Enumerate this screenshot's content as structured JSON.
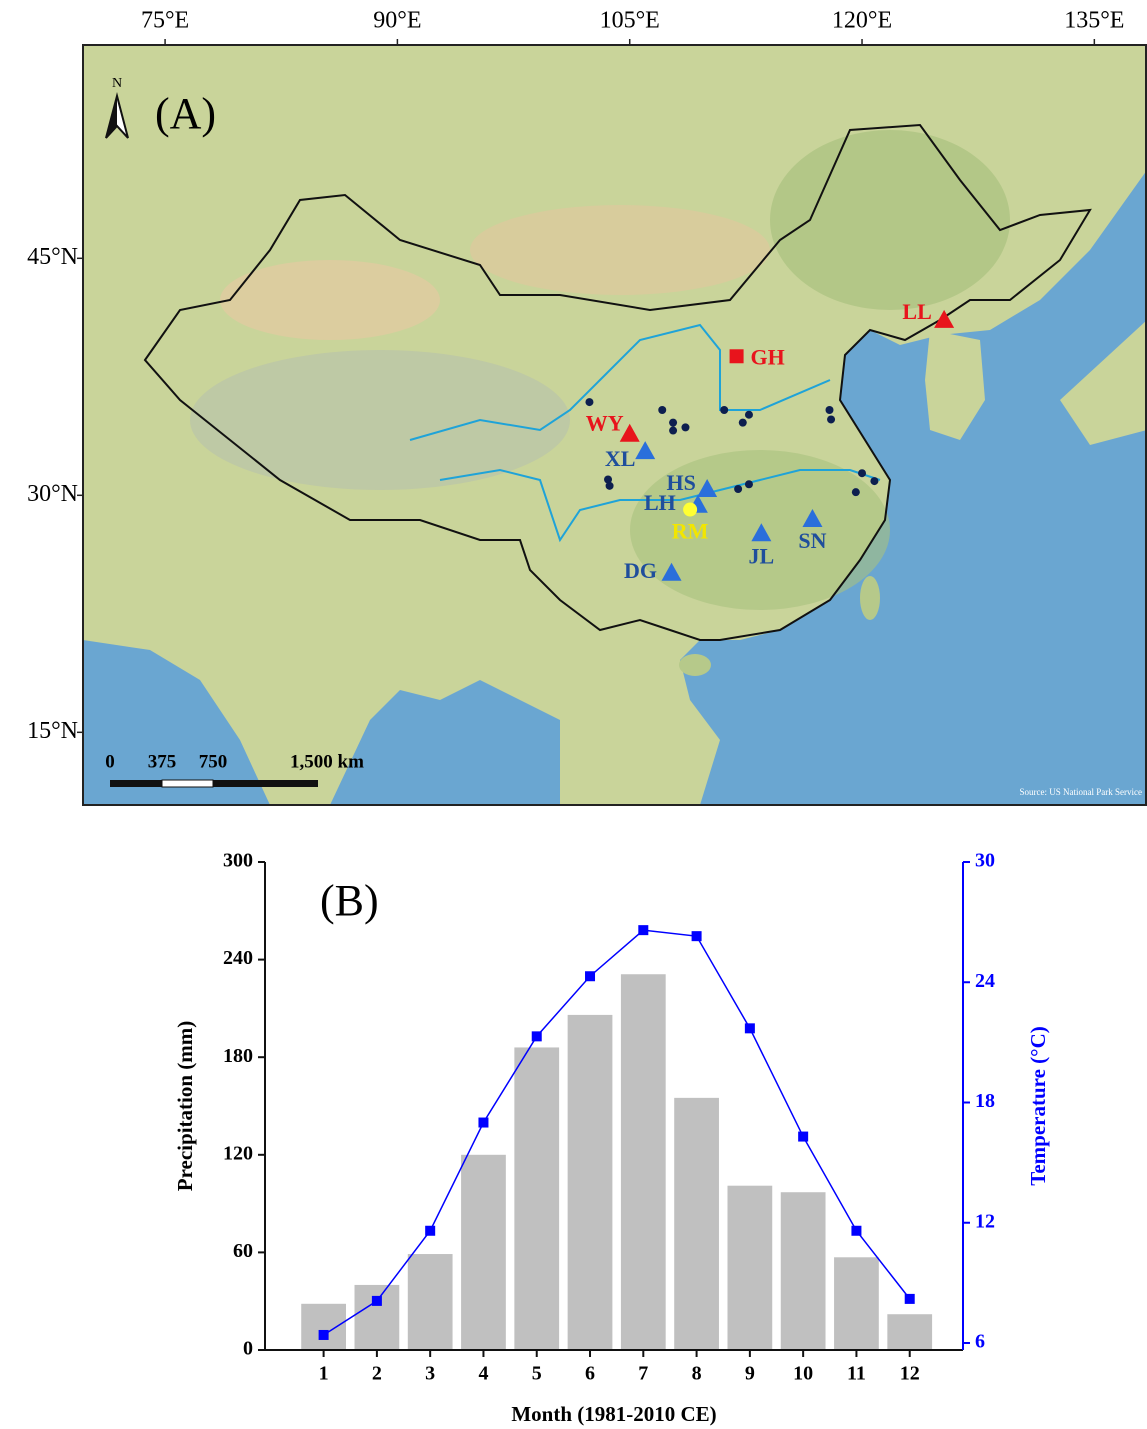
{
  "chart_data": [
    {
      "type": "map",
      "title": "(A)",
      "north_label": "N",
      "xlim": [
        69.7,
        138.4
      ],
      "ylim": [
        10.4,
        58.5
      ],
      "xticks": [
        {
          "value": 75,
          "label": "75°E"
        },
        {
          "value": 90,
          "label": "90°E"
        },
        {
          "value": 105,
          "label": "105°E"
        },
        {
          "value": 120,
          "label": "120°E"
        },
        {
          "value": 135,
          "label": "135°E"
        }
      ],
      "yticks": [
        {
          "value": 15,
          "label": "15°N"
        },
        {
          "value": 30,
          "label": "30°N"
        },
        {
          "value": 45,
          "label": "45°N"
        }
      ],
      "scale_bar_labels": [
        "0",
        "375",
        "750",
        "1,500 km"
      ],
      "source": "Source: US National Park Service",
      "series": [
        {
          "marker": "triangle",
          "color": "#e8141c",
          "label_color": "#e8141c",
          "x": [
            105.0,
            125.3
          ],
          "y": [
            33.9,
            41.1
          ],
          "labels": [
            "WY",
            "LL"
          ]
        },
        {
          "marker": "square",
          "color": "#e8141c",
          "label_color": "#e8141c",
          "x": [
            111.9
          ],
          "y": [
            38.8
          ],
          "labels": [
            "GH"
          ]
        },
        {
          "marker": "triangle",
          "color": "#2a6fdb",
          "label_color": "#1f4e9c",
          "x": [
            106.0,
            110.0,
            109.4,
            113.5,
            116.8,
            107.7
          ],
          "y": [
            32.8,
            30.4,
            29.4,
            27.6,
            28.5,
            25.1
          ],
          "labels": [
            "XL",
            "HS",
            "LH",
            "JL",
            "SN",
            "DG"
          ]
        },
        {
          "marker": "circle",
          "color": "#ffff33",
          "label_color": "#f2e600",
          "x": [
            108.9
          ],
          "y": [
            29.1
          ],
          "labels": [
            "RM"
          ]
        },
        {
          "marker": "dot",
          "color": "#0d1f4f",
          "x": [
            102.4,
            107.1,
            107.8,
            108.6,
            107.8,
            111.1,
            112.7,
            112.3,
            117.9,
            118.0,
            103.6,
            103.7,
            112.0,
            112.7,
            120.0,
            120.8,
            119.6
          ],
          "y": [
            35.9,
            35.4,
            34.6,
            34.3,
            34.1,
            35.4,
            35.1,
            34.6,
            35.4,
            34.8,
            31.0,
            30.6,
            30.4,
            30.7,
            31.4,
            30.9,
            30.2
          ]
        }
      ]
    },
    {
      "type": "bar",
      "title": "(B)",
      "categories": [
        "1",
        "2",
        "3",
        "4",
        "5",
        "6",
        "7",
        "8",
        "9",
        "10",
        "11",
        "12"
      ],
      "x_label": "Month (1981-2010 CE)",
      "y_label": "Precipitation (mm)",
      "y2_label": "Temperature (°C)",
      "ylim": [
        0,
        300
      ],
      "yticks": [
        0,
        60,
        120,
        180,
        240,
        300
      ],
      "y2lim": [
        5.65,
        30
      ],
      "y2ticks": [
        6,
        12,
        18,
        24,
        30
      ],
      "y2_color": "#0000ff",
      "series": [
        {
          "type": "bar",
          "color": "#c0c0c0",
          "values": [
            28.4,
            40,
            59,
            120,
            186,
            206,
            231,
            155,
            101,
            97,
            57,
            22
          ]
        },
        {
          "type": "line",
          "axis": "y2",
          "color": "#0000ff",
          "values": [
            6.4,
            8.1,
            11.6,
            17.0,
            21.3,
            24.3,
            26.6,
            26.3,
            21.7,
            16.3,
            11.6,
            8.2
          ]
        }
      ]
    }
  ]
}
